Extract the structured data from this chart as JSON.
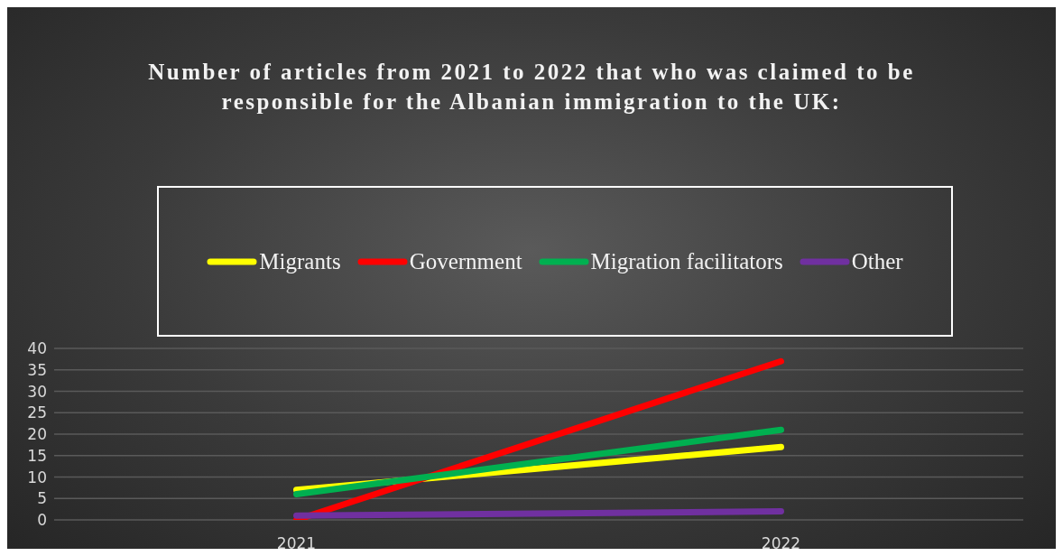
{
  "chart_data": {
    "type": "line",
    "title": "Number of articles from 2021 to 2022 that who was claimed to be responsible for the Albanian immigration to the UK:",
    "categories": [
      "2021",
      "2022"
    ],
    "series": [
      {
        "name": "Migrants",
        "color": "#ffff00",
        "values": [
          7,
          17
        ]
      },
      {
        "name": "Government",
        "color": "#ff0000",
        "values": [
          0,
          37
        ]
      },
      {
        "name": "Migration facilitators",
        "color": "#00b050",
        "values": [
          6,
          21
        ]
      },
      {
        "name": "Other",
        "color": "#7030a0",
        "values": [
          1,
          2
        ]
      }
    ],
    "ylim": [
      0,
      40
    ],
    "yticks": [
      0,
      5,
      10,
      15,
      20,
      25,
      30,
      35,
      40
    ],
    "grid": "y",
    "legend": "top",
    "marker": "none",
    "line_style": "solid"
  }
}
